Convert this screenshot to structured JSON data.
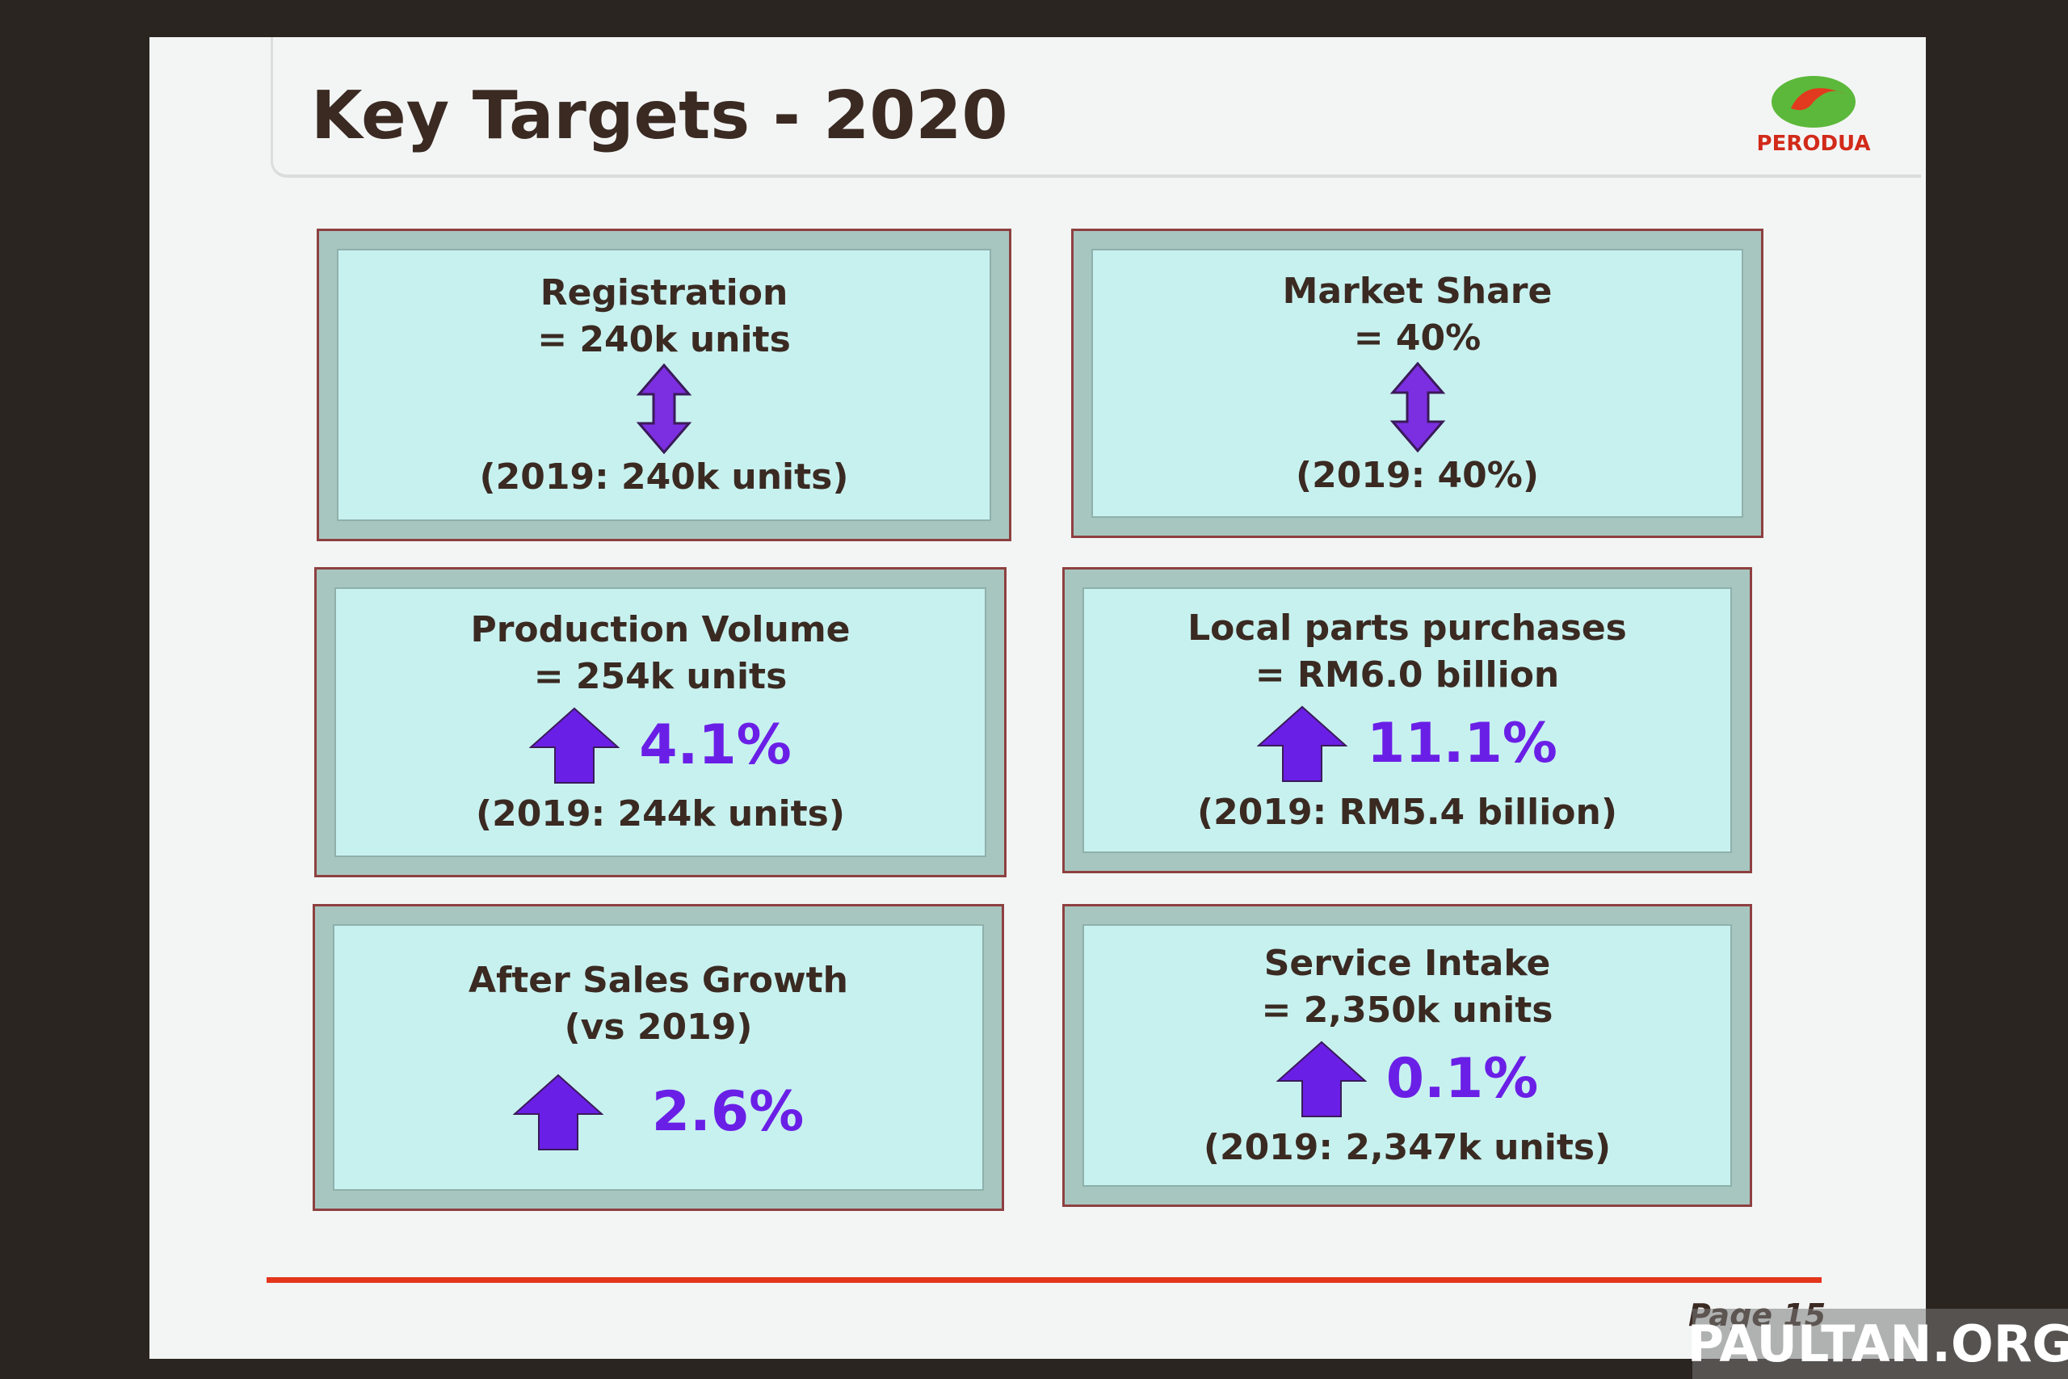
{
  "header": {
    "title": "Key Targets - 2020",
    "logo": "PERODUA"
  },
  "boxes": [
    {
      "title": "Registration",
      "target": "= 240k units",
      "previous": "(2019: 240k units)"
    },
    {
      "title": "Market Share",
      "target": "= 40%",
      "previous": "(2019: 40%)"
    },
    {
      "title": "Production Volume",
      "target": "=  254k units",
      "change": "4.1%",
      "previous": "(2019: 244k units)"
    },
    {
      "title": "Local parts purchases",
      "target": "=  RM6.0 billion",
      "change": "11.1%",
      "previous": "(2019: RM5.4 billion)"
    },
    {
      "title": "After Sales Growth",
      "subtitle": "(vs 2019)",
      "change": "2.6%"
    },
    {
      "title": "Service Intake",
      "target": "=  2,350k units",
      "change": "0.1%",
      "previous": "(2019: 2,347k units)"
    }
  ],
  "footer": {
    "page": "Page 15",
    "watermark": "PAULTAN.ORG"
  }
}
